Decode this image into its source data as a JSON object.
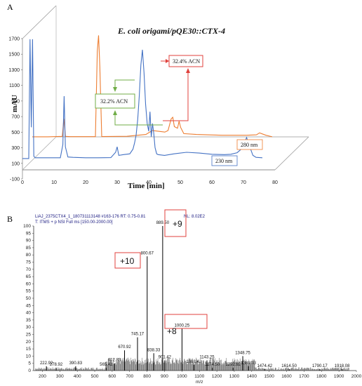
{
  "chart_data": [
    {
      "type": "line",
      "panel_label": "A",
      "title": "E. coli origami/pQE30::CTX-4",
      "xlabel": "Time [min]",
      "ylabel": "mAU",
      "xlim": [
        0,
        80
      ],
      "ylim": [
        -100,
        1700
      ],
      "x_ticks": [
        "0",
        "10",
        "20",
        "30",
        "40",
        "50",
        "60",
        "70",
        "80"
      ],
      "y_ticks": [
        "-100",
        "100",
        "300",
        "500",
        "700",
        "900",
        "1100",
        "1300",
        "1500",
        "1700"
      ],
      "series": [
        {
          "name": "230 nm",
          "color": "#4472c4",
          "x": [
            0,
            2,
            2.4,
            2.8,
            3.2,
            3.6,
            4,
            6,
            8,
            10,
            12,
            12.8,
            13.2,
            13.6,
            14.4,
            16,
            20,
            24,
            28,
            29.5,
            30,
            30.5,
            32,
            34,
            35,
            35.5,
            36,
            36.5,
            37,
            37.5,
            38,
            38.5,
            39,
            39.5,
            40,
            40.4,
            40.8,
            41.2,
            41.6,
            42,
            42.5,
            43,
            45,
            48,
            52,
            56,
            60,
            64,
            66,
            68,
            69,
            70,
            71,
            72,
            73,
            74,
            76
          ],
          "y": [
            0,
            0,
            1530,
            400,
            1530,
            30,
            10,
            10,
            10,
            10,
            10,
            180,
            800,
            150,
            20,
            15,
            10,
            10,
            12,
            80,
            150,
            40,
            50,
            60,
            120,
            200,
            300,
            500,
            800,
            1200,
            1395,
            1100,
            700,
            450,
            350,
            600,
            280,
            450,
            320,
            140,
            60,
            50,
            40,
            60,
            80,
            70,
            55,
            50,
            55,
            75,
            110,
            170,
            270,
            150,
            40,
            15,
            10
          ]
        },
        {
          "name": "280 nm",
          "color": "#ed7d31",
          "x": [
            0,
            5,
            9.5,
            10,
            10.5,
            12,
            20,
            20.6,
            21,
            21.4,
            22,
            30,
            36,
            38,
            40,
            42,
            43,
            44,
            44.5,
            45,
            46,
            46.5,
            47,
            48,
            52,
            60,
            68,
            71,
            72,
            74,
            76
          ],
          "y": [
            0,
            0,
            5,
            230,
            5,
            2,
            2,
            1100,
            1300,
            900,
            3,
            6,
            30,
            80,
            70,
            60,
            80,
            230,
            250,
            130,
            110,
            200,
            120,
            40,
            30,
            20,
            20,
            25,
            50,
            20,
            0
          ]
        }
      ],
      "annotations": [
        "32.2% ACN",
        "32.4% ACN"
      ]
    },
    {
      "type": "bar",
      "panel_label": "B",
      "header_lines": [
        "LiAJ_2375CTX4_1_180731113148 #163-176   RT: 0.75-0.81",
        "T: ITMS + p NSI Full ms [150.00-2000.00]"
      ],
      "nl_label": "NL: 8.02E2",
      "xlabel": "m/z",
      "xlim": [
        150,
        2000
      ],
      "ylim": [
        0,
        100
      ],
      "x_ticks": [
        "200",
        "300",
        "400",
        "500",
        "600",
        "700",
        "800",
        "900",
        "1000",
        "1100",
        "1200",
        "1300",
        "1400",
        "1500",
        "1600",
        "1700",
        "1800",
        "1900",
        "2000"
      ],
      "y_ticks": [
        "0",
        "5",
        "10",
        "15",
        "20",
        "25",
        "30",
        "35",
        "40",
        "45",
        "50",
        "55",
        "60",
        "65",
        "70",
        "75",
        "80",
        "85",
        "90",
        "95",
        "100"
      ],
      "peaks": [
        {
          "mz": 222.92,
          "intensity": 3,
          "label": "222.92"
        },
        {
          "mz": 278.92,
          "intensity": 2,
          "label": "278.92"
        },
        {
          "mz": 390.83,
          "intensity": 3,
          "label": "390.83"
        },
        {
          "mz": 565.42,
          "intensity": 2,
          "label": "565.42"
        },
        {
          "mz": 612.83,
          "intensity": 5,
          "label": "612.83"
        },
        {
          "mz": 670.92,
          "intensity": 14,
          "label": "670.92"
        },
        {
          "mz": 745.17,
          "intensity": 23,
          "label": "745.17"
        },
        {
          "mz": 800.67,
          "intensity": 79,
          "label": "800.67"
        },
        {
          "mz": 838.33,
          "intensity": 12,
          "label": "838.33"
        },
        {
          "mz": 889.5,
          "intensity": 100,
          "label": "889.50"
        },
        {
          "mz": 901.42,
          "intensity": 7,
          "label": "901.42"
        },
        {
          "mz": 1000.25,
          "intensity": 29,
          "label": "1000.25"
        },
        {
          "mz": 1068.42,
          "intensity": 4,
          "label": "1068.42"
        },
        {
          "mz": 1143.25,
          "intensity": 7,
          "label": "1143.25"
        },
        {
          "mz": 1174.5,
          "intensity": 2,
          "label": "1174.50"
        },
        {
          "mz": 1292.92,
          "intensity": 2,
          "label": "1292.92"
        },
        {
          "mz": 1348.75,
          "intensity": 10,
          "label": "1348.75"
        },
        {
          "mz": 1381.33,
          "intensity": 3,
          "label": "1381.33"
        },
        {
          "mz": 1474.42,
          "intensity": 1,
          "label": "1474.42"
        },
        {
          "mz": 1614.5,
          "intensity": 1,
          "label": "1614.50"
        },
        {
          "mz": 1790.17,
          "intensity": 1,
          "label": "1790.17"
        },
        {
          "mz": 1918.08,
          "intensity": 1,
          "label": "1918.08"
        }
      ],
      "charge_states": [
        "+10",
        "+9",
        "+8"
      ]
    }
  ]
}
